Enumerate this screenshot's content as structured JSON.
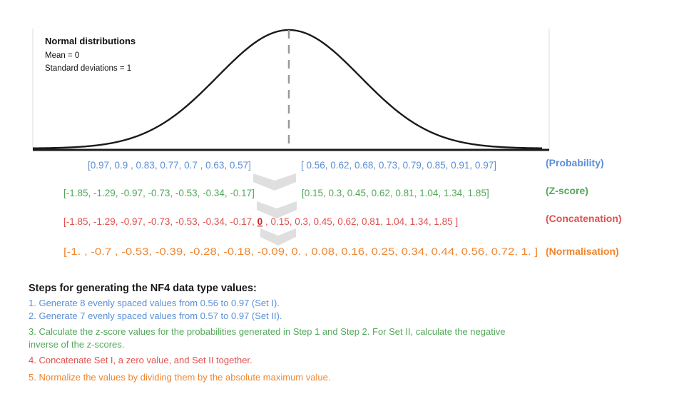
{
  "distribution": {
    "title": "Normal distributions",
    "mean": "Mean = 0",
    "std": "Standard deviations = 1"
  },
  "rows": {
    "probability": {
      "left": "[0.97, 0.9 , 0.83, 0.77, 0.7 , 0.63, 0.57]",
      "right": "[ 0.56, 0.62, 0.68, 0.73, 0.79, 0.85, 0.91, 0.97]",
      "tag": "(Probability)"
    },
    "zscore": {
      "left": "[-1.85, -1.29, -0.97, -0.73, -0.53, -0.34, -0.17]",
      "right": "[0.15, 0.3, 0.45, 0.62, 0.81, 1.04, 1.34, 1.85]",
      "tag": "(Z-score)"
    },
    "concat": {
      "left": "[-1.85, -1.29, -0.97, -0.73, -0.53, -0.34, -0.17, ",
      "zero": "0",
      "right": " , 0.15, 0.3, 0.45, 0.62, 0.81, 1.04, 1.34, 1.85 ]",
      "tag": "(Concatenation)"
    },
    "norm": {
      "text": "[-1.  , -0.7 , -0.53, -0.39, -0.28, -0.18, -0.09,  0.  ,  0.08, 0.16,  0.25,  0.34,  0.44,  0.56,  0.72,  1.  ]",
      "tag": "(Normalisation)"
    }
  },
  "colors": {
    "blue": "#5b8fd6",
    "green": "#53a85a",
    "red": "#e0514f",
    "orange": "#f0852f"
  },
  "steps": {
    "title": "Steps for generating the NF4 data type values:",
    "s1": "1. Generate 8 evenly spaced values from 0.56 to 0.97 (Set I).",
    "s2": "2. Generate 7 evenly spaced values from 0.57 to 0.97 (Set II).",
    "s3a": "3. Calculate the z-score values for the probabilities generated in Step 1 and Step 2. For Set II, calculate the negative",
    "s3b": "inverse of the z-scores.",
    "s4": "4. Concatenate Set I, a zero value, and Set II together.",
    "s5": "5. Normalize the values by dividing them by the absolute maximum value."
  }
}
